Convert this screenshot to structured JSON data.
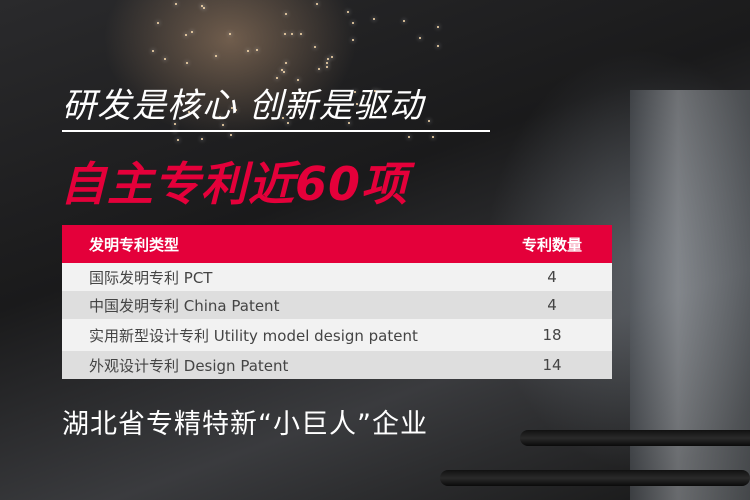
{
  "headline": "研发是核心 创新是驱动",
  "subheadline": "自主专利近60项",
  "accent_color": "#e4003a",
  "table": {
    "headers": [
      "发明专利类型",
      "专利数量"
    ],
    "rows": [
      {
        "type": "国际发明专利   PCT",
        "count": "4"
      },
      {
        "type": "中国发明专利   China Patent",
        "count": "4"
      },
      {
        "type": "实用新型设计专利  Utility model design patent",
        "count": "18"
      },
      {
        "type": "外观设计专利  Design Patent",
        "count": "14"
      }
    ]
  },
  "footer": "湖北省专精特新“小巨人”企业"
}
